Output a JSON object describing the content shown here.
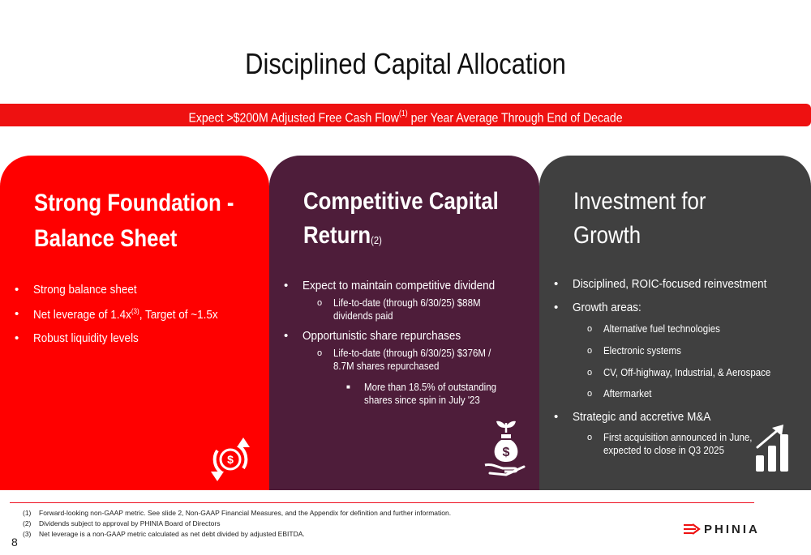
{
  "title": "Disciplined Capital Allocation",
  "banner": {
    "pre": "Expect >$200M Adjusted Free Cash Flow",
    "ref": "(1)",
    "post": " per Year Average Through End of Decade"
  },
  "panels": [
    {
      "title_line1": "Strong Foundation -",
      "title_line2": "Balance Sheet",
      "bullets": [
        {
          "text": "Strong balance sheet"
        },
        {
          "pre": "Net leverage of 1.4x",
          "ref": "(3)",
          "post": ", Target of ~1.5x"
        },
        {
          "text": "Robust liquidity levels"
        }
      ],
      "icon": "dollar-cycle-icon"
    },
    {
      "title_line1": "Competitive Capital",
      "title_line2": "Return",
      "title_ref": "(2)",
      "bullets": [
        {
          "text": "Expect to maintain competitive dividend",
          "sub": [
            "Life-to-date (through 6/30/25) $88M",
            "dividends paid"
          ]
        },
        {
          "text": "Opportunistic share repurchases",
          "sub": [
            "Life-to-date (through 6/30/25) $376M /",
            "8.7M shares repurchased"
          ],
          "subsub": [
            "More than 18.5% of outstanding",
            "shares since spin in July '23"
          ]
        }
      ],
      "icon": "money-bag-hand-icon"
    },
    {
      "title_line1": "Investment for",
      "title_line2": "Growth",
      "bullets": [
        {
          "text": "Disciplined, ROIC-focused reinvestment"
        },
        {
          "text": "Growth areas:",
          "sub": [
            "Alternative fuel technologies",
            "Electronic systems",
            "CV, Off-highway, Industrial, & Aerospace",
            "Aftermarket"
          ]
        },
        {
          "text": "Strategic and accretive M&A",
          "sub": [
            "First acquisition announced in June,",
            "expected to close in Q3 2025"
          ]
        }
      ],
      "icon": "growth-chart-icon"
    }
  ],
  "footnotes": [
    {
      "num": "(1)",
      "text": "Forward-looking non-GAAP metric. See slide 2, Non-GAAP Financial Measures, and the Appendix for definition and further information."
    },
    {
      "num": "(2)",
      "text": "Dividends subject to approval by PHINIA Board of Directors"
    },
    {
      "num": "(3)",
      "text": "Net leverage is a non-GAAP metric calculated as net debt divided by adjusted EBITDA."
    }
  ],
  "page_number": "8",
  "logo_text": "PHINIA",
  "colors": {
    "accent": "#ff0000",
    "panel2": "#4e1d3a",
    "panel3": "#404040"
  }
}
